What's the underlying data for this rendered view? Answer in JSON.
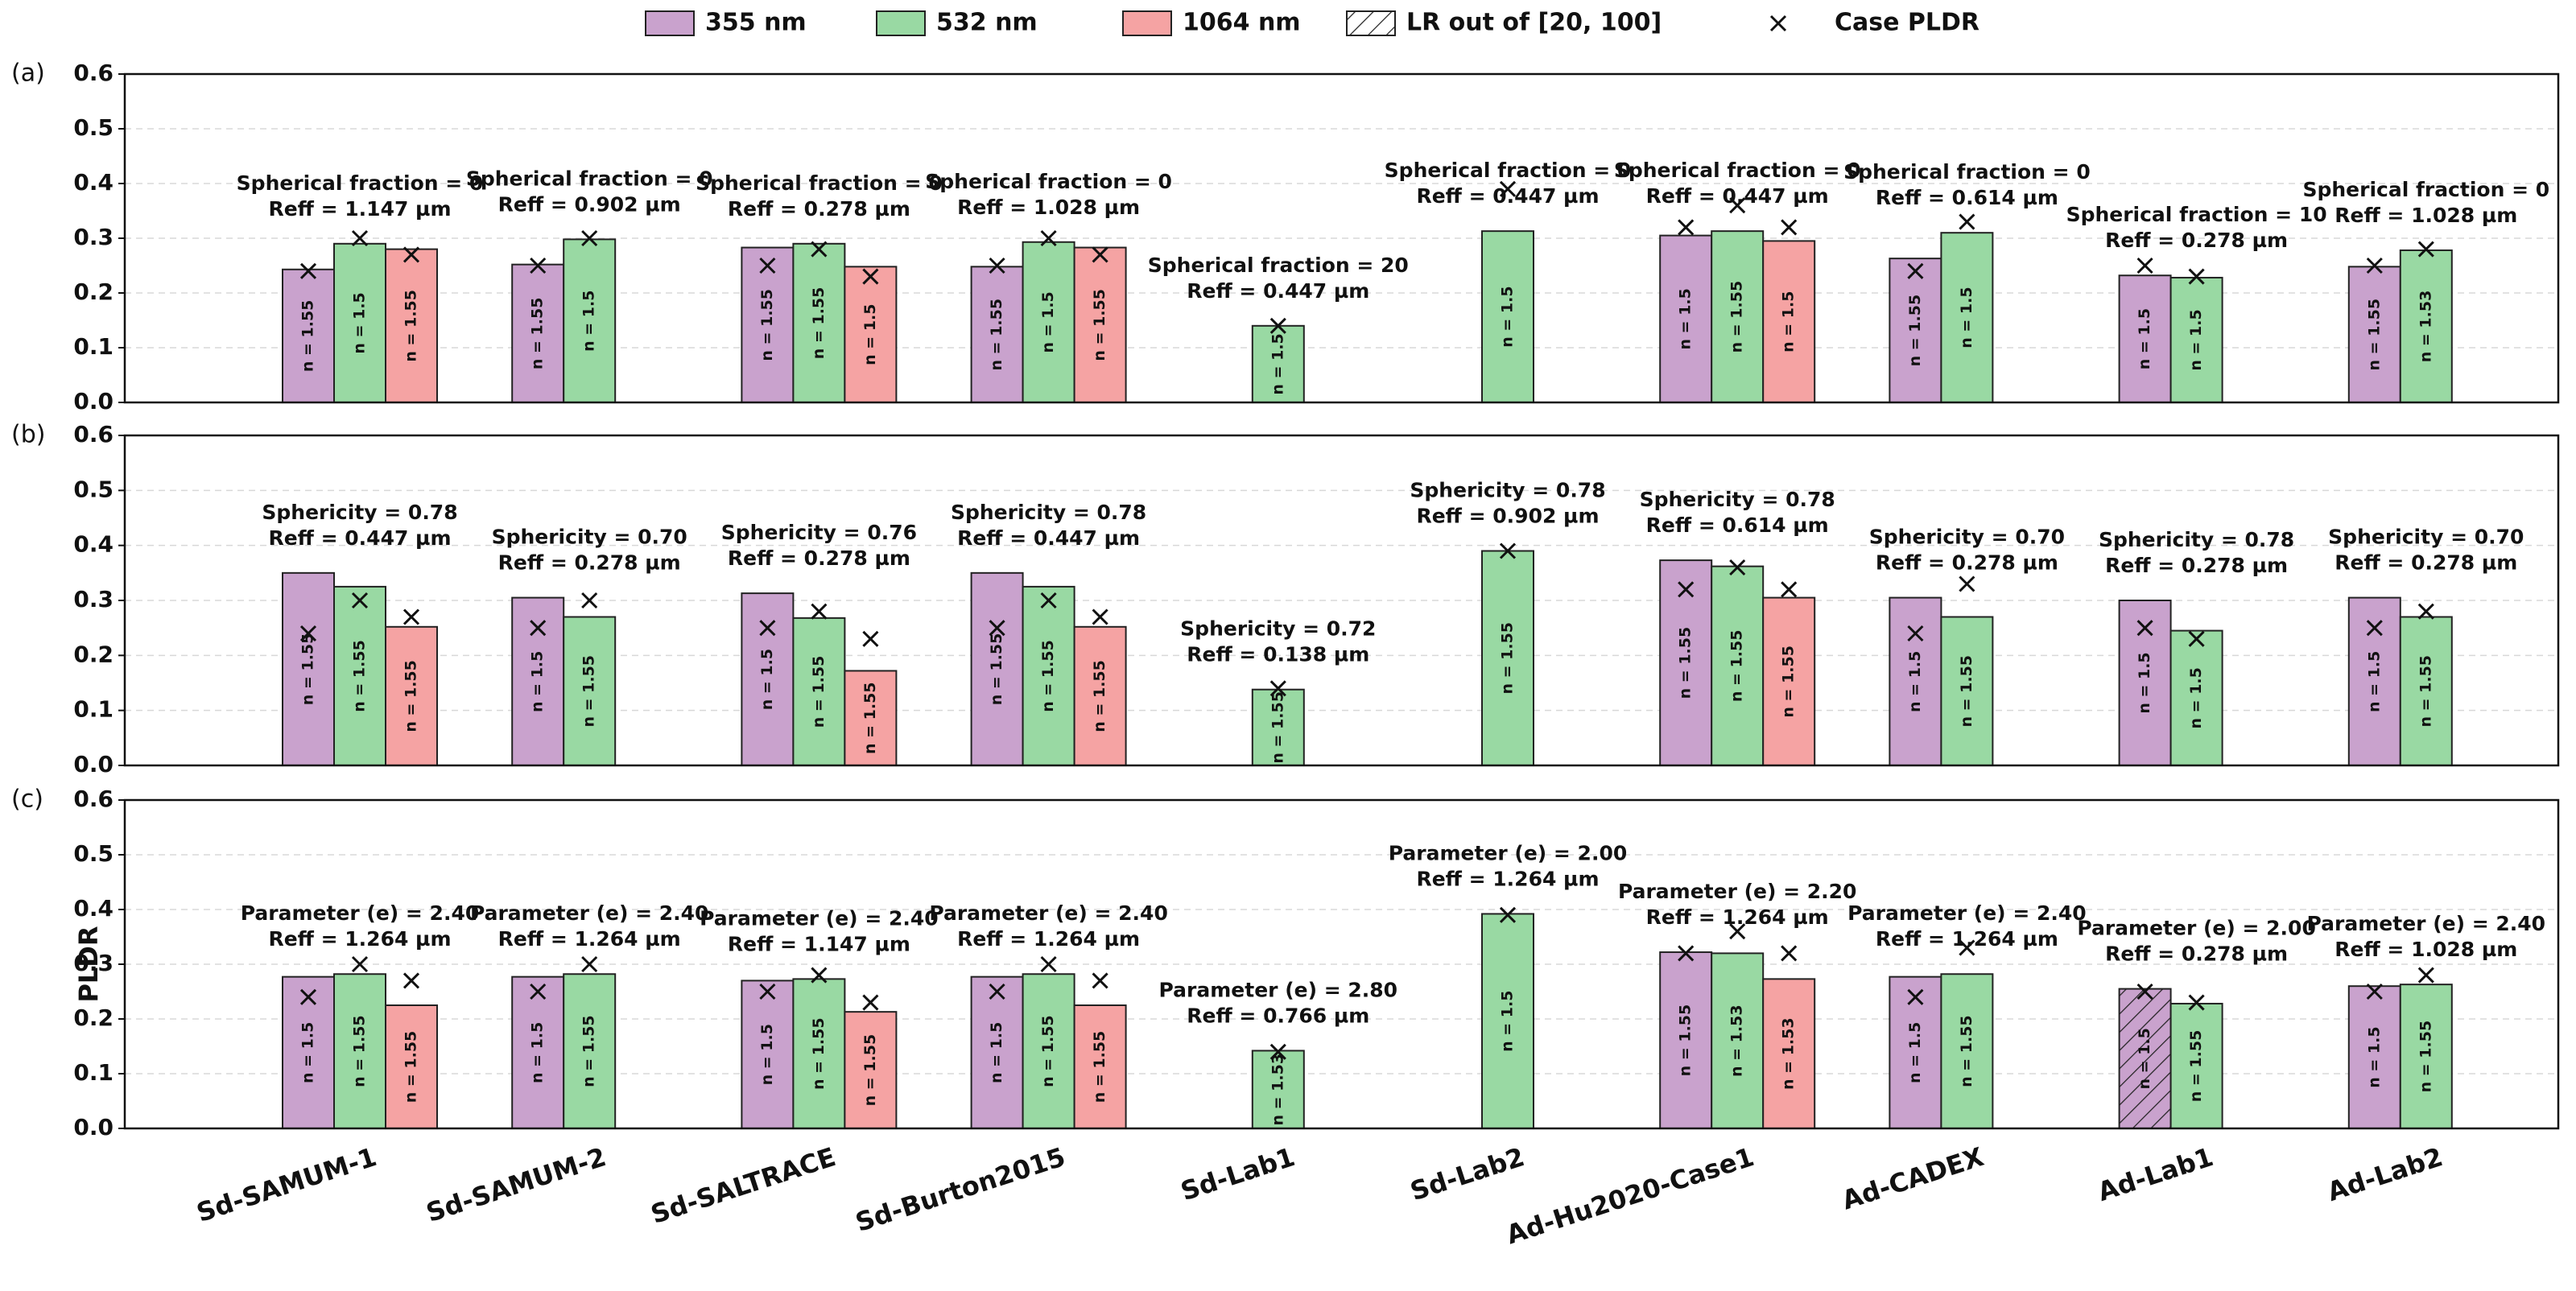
{
  "chart_data": [
    {
      "type": "bar",
      "panel_label": "(a)",
      "ylim": [
        0,
        0.6
      ],
      "yticks": [
        {
          "value": 0,
          "label": "0.0"
        },
        0.1,
        0.2,
        0.3,
        0.4,
        0.5,
        0.6
      ],
      "grid": true,
      "hatch_label": "LR out of [20, 100]",
      "marker_label": "Case PLDR",
      "series": [
        {
          "name": "355 nm",
          "color": "#c9a2cd",
          "values": [
            0.243,
            0.252,
            0.283,
            0.248,
            null,
            null,
            0.305,
            0.263,
            0.232,
            0.248
          ],
          "bar_labels": [
            "n = 1.55",
            "n = 1.55",
            "n = 1.55",
            "n = 1.55",
            null,
            null,
            "n = 1.5",
            "n = 1.55",
            "n = 1.5",
            "n = 1.55"
          ],
          "case_pldr": [
            0.24,
            0.25,
            0.25,
            0.25,
            null,
            null,
            0.32,
            0.24,
            0.25,
            0.25
          ]
        },
        {
          "name": "532 nm",
          "color": "#99d9a3",
          "values": [
            0.29,
            0.298,
            0.29,
            0.293,
            0.14,
            0.313,
            0.313,
            0.31,
            0.228,
            0.278
          ],
          "bar_labels": [
            "n = 1.5",
            "n = 1.5",
            "n = 1.55",
            "n = 1.5",
            "n = 1.5",
            "n = 1.5",
            "n = 1.55",
            "n = 1.5",
            "n = 1.5",
            "n = 1.53"
          ],
          "case_pldr": [
            0.3,
            0.3,
            0.28,
            0.3,
            0.14,
            0.39,
            0.36,
            0.33,
            0.23,
            0.28
          ]
        },
        {
          "name": "1064 nm",
          "color": "#f5a3a3",
          "values": [
            0.28,
            null,
            0.248,
            0.283,
            null,
            null,
            0.295,
            null,
            null,
            null
          ],
          "bar_labels": [
            "n = 1.55",
            null,
            "n = 1.5",
            "n = 1.55",
            null,
            null,
            "n = 1.5",
            null,
            null,
            null
          ],
          "case_pldr": [
            0.27,
            null,
            0.23,
            0.27,
            null,
            null,
            0.32,
            null,
            null,
            null
          ]
        }
      ],
      "annotations": [
        [
          "Spherical fraction = 0",
          "Reff = 1.147 µm"
        ],
        [
          "Spherical fraction = 0",
          "Reff = 0.902 µm"
        ],
        [
          "Spherical fraction = 0",
          "Reff = 0.278 µm"
        ],
        [
          "Spherical fraction = 0",
          "Reff = 1.028 µm"
        ],
        [
          "Spherical fraction = 20",
          "Reff = 0.447 µm"
        ],
        [
          "Spherical fraction = 0",
          "Reff = 0.447 µm"
        ],
        [
          "Spherical fraction = 0",
          "Reff = 0.447 µm"
        ],
        [
          "Spherical fraction = 0",
          "Reff = 0.614 µm"
        ],
        [
          "Spherical fraction = 10",
          "Reff = 0.278 µm"
        ],
        [
          "Spherical fraction = 0",
          "Reff = 1.028 µm"
        ]
      ]
    },
    {
      "type": "bar",
      "panel_label": "(b)",
      "ylim": [
        0,
        0.6
      ],
      "yticks": [
        {
          "value": 0,
          "label": "0.0"
        },
        0.1,
        0.2,
        0.3,
        0.4,
        0.5,
        0.6
      ],
      "grid": true,
      "series": [
        {
          "color": "#c9a2cd",
          "values": [
            0.35,
            0.305,
            0.313,
            0.35,
            null,
            null,
            0.373,
            0.305,
            0.3,
            0.305
          ],
          "bar_labels": [
            "n = 1.55",
            "n = 1.5",
            "n = 1.5",
            "n = 1.55",
            null,
            null,
            "n = 1.55",
            "n = 1.5",
            "n = 1.5",
            "n = 1.5"
          ],
          "case_pldr": [
            0.24,
            0.25,
            0.25,
            0.25,
            null,
            null,
            0.32,
            0.24,
            0.25,
            0.25
          ]
        },
        {
          "color": "#99d9a3",
          "values": [
            0.325,
            0.27,
            0.268,
            0.325,
            0.138,
            0.39,
            0.362,
            0.27,
            0.245,
            0.27
          ],
          "bar_labels": [
            "n = 1.55",
            "n = 1.55",
            "n = 1.55",
            "n = 1.55",
            "n = 1.55",
            "n = 1.55",
            "n = 1.55",
            "n = 1.55",
            "n = 1.5",
            "n = 1.55"
          ],
          "case_pldr": [
            0.3,
            0.3,
            0.28,
            0.3,
            0.14,
            0.39,
            0.36,
            0.33,
            0.23,
            0.28
          ]
        },
        {
          "color": "#f5a3a3",
          "values": [
            0.252,
            null,
            0.172,
            0.252,
            null,
            null,
            0.305,
            null,
            null,
            null
          ],
          "bar_labels": [
            "n = 1.55",
            null,
            "n = 1.55",
            "n = 1.55",
            null,
            null,
            "n = 1.55",
            null,
            null,
            null
          ],
          "case_pldr": [
            0.27,
            null,
            0.23,
            0.27,
            null,
            null,
            0.32,
            null,
            null,
            null
          ]
        }
      ],
      "annotations": [
        [
          "Sphericity = 0.78",
          "Reff = 0.447 µm"
        ],
        [
          "Sphericity = 0.70",
          "Reff = 0.278 µm"
        ],
        [
          "Sphericity = 0.76",
          "Reff = 0.278 µm"
        ],
        [
          "Sphericity = 0.78",
          "Reff = 0.447 µm"
        ],
        [
          "Sphericity = 0.72",
          "Reff = 0.138 µm"
        ],
        [
          "Sphericity = 0.78",
          "Reff = 0.902 µm"
        ],
        [
          "Sphericity = 0.78",
          "Reff = 0.614 µm"
        ],
        [
          "Sphericity = 0.70",
          "Reff = 0.278 µm"
        ],
        [
          "Sphericity = 0.78",
          "Reff = 0.278 µm"
        ],
        [
          "Sphericity = 0.70",
          "Reff = 0.278 µm"
        ]
      ]
    },
    {
      "type": "bar",
      "panel_label": "(c)",
      "ylabel": "PLDR",
      "ylim": [
        0,
        0.6
      ],
      "yticks": [
        {
          "value": 0,
          "label": "0.0"
        },
        0.1,
        0.2,
        0.3,
        0.4,
        0.5,
        0.6
      ],
      "grid": true,
      "categories": [
        "Sd-SAMUM-1",
        "Sd-SAMUM-2",
        "Sd-SALTRACE",
        "Sd-Burton2015",
        "Sd-Lab1",
        "Sd-Lab2",
        "Ad-Hu2020-Case1",
        "Ad-CADEX",
        "Ad-Lab1",
        "Ad-Lab2"
      ],
      "series": [
        {
          "color": "#c9a2cd",
          "values": [
            0.277,
            0.277,
            0.27,
            0.277,
            null,
            null,
            0.322,
            0.277,
            0.255,
            0.26
          ],
          "bar_labels": [
            "n = 1.5",
            "n = 1.5",
            "n = 1.5",
            "n = 1.5",
            null,
            null,
            "n = 1.55",
            "n = 1.5",
            "n = 1.5",
            "n = 1.5"
          ],
          "hatched": [
            false,
            false,
            false,
            false,
            false,
            false,
            false,
            false,
            true,
            false
          ],
          "case_pldr": [
            0.24,
            0.25,
            0.25,
            0.25,
            null,
            null,
            0.32,
            0.24,
            0.25,
            0.25
          ]
        },
        {
          "color": "#99d9a3",
          "values": [
            0.282,
            0.282,
            0.273,
            0.282,
            0.142,
            0.392,
            0.32,
            0.282,
            0.228,
            0.263
          ],
          "bar_labels": [
            "n = 1.55",
            "n = 1.55",
            "n = 1.55",
            "n = 1.55",
            "n = 1.53",
            "n = 1.5",
            "n = 1.53",
            "n = 1.55",
            "n = 1.55",
            "n = 1.55"
          ],
          "case_pldr": [
            0.3,
            0.3,
            0.28,
            0.3,
            0.14,
            0.39,
            0.36,
            0.33,
            0.23,
            0.28
          ]
        },
        {
          "color": "#f5a3a3",
          "values": [
            0.225,
            null,
            0.213,
            0.225,
            null,
            null,
            0.273,
            null,
            null,
            null
          ],
          "bar_labels": [
            "n = 1.55",
            null,
            "n = 1.55",
            "n = 1.55",
            null,
            null,
            "n = 1.53",
            null,
            null,
            null
          ],
          "case_pldr": [
            0.27,
            null,
            0.23,
            0.27,
            null,
            null,
            0.32,
            null,
            null,
            null
          ]
        }
      ],
      "annotations": [
        [
          "Parameter (e) = 2.40",
          "Reff = 1.264 µm"
        ],
        [
          "Parameter (e) = 2.40",
          "Reff = 1.264 µm"
        ],
        [
          "Parameter (e) = 2.40",
          "Reff = 1.147 µm"
        ],
        [
          "Parameter (e) = 2.40",
          "Reff = 1.264 µm"
        ],
        [
          "Parameter (e) = 2.80",
          "Reff = 0.766 µm"
        ],
        [
          "Parameter (e) = 2.00",
          "Reff = 1.264 µm"
        ],
        [
          "Parameter (e) = 2.20",
          "Reff = 1.264 µm"
        ],
        [
          "Parameter (e) = 2.40",
          "Reff = 1.264 µm"
        ],
        [
          "Parameter (e) = 2.00",
          "Reff = 0.278 µm"
        ],
        [
          "Parameter (e) = 2.40",
          "Reff = 1.028 µm"
        ]
      ]
    }
  ]
}
